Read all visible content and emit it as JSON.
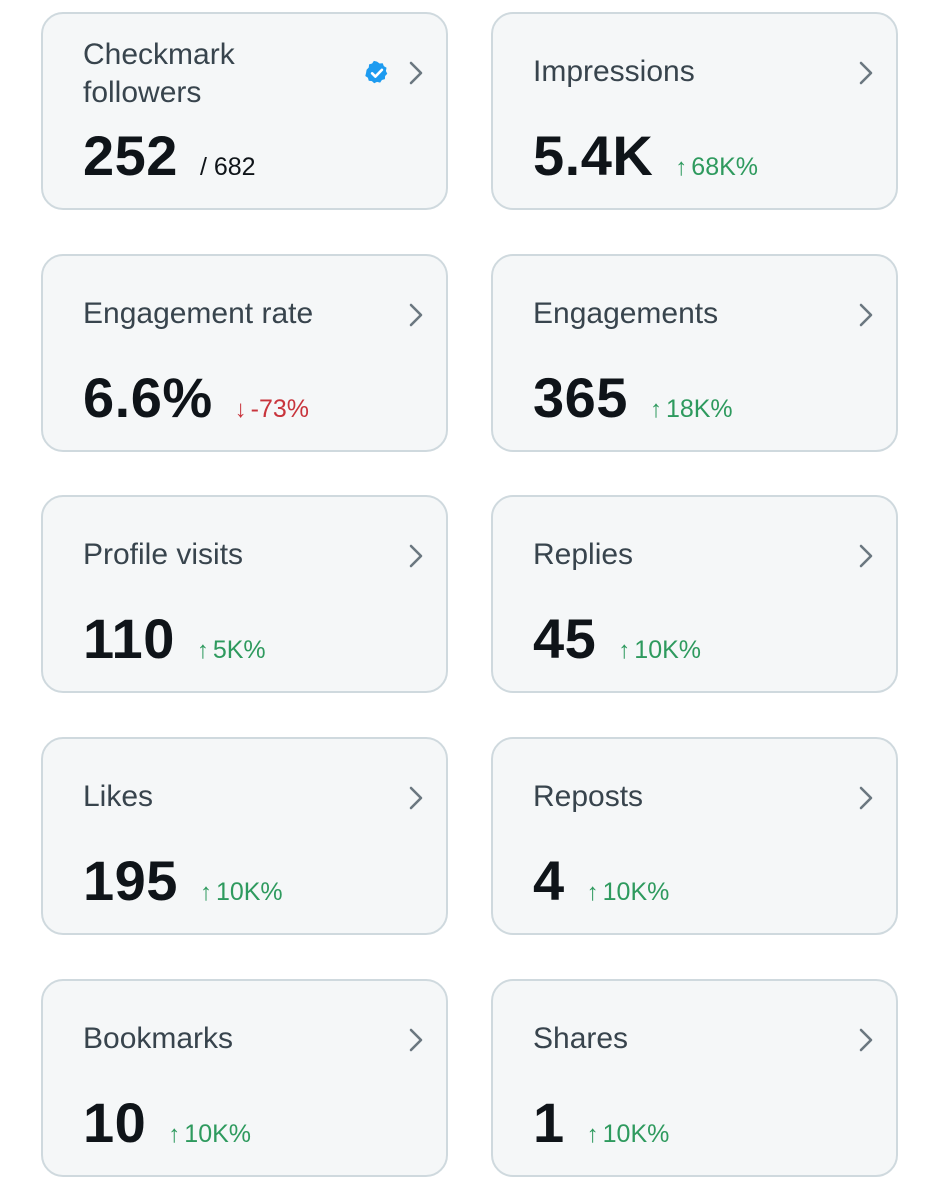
{
  "colors": {
    "card_bg": "#f5f7f8",
    "card_border": "#cfd9de",
    "up": "#2e9a5e",
    "down": "#c8343c",
    "verified": "#1d9bf0"
  },
  "cards": [
    {
      "title": "Checkmark followers",
      "value": "252",
      "sub": "/ 682",
      "icon": "verified-badge-icon"
    },
    {
      "title": "Impressions",
      "value": "5.4K",
      "delta_arrow": "↑",
      "delta": "68K%",
      "direction": "up"
    },
    {
      "title": "Engagement rate",
      "value": "6.6%",
      "delta_arrow": "↓",
      "delta": "-73%",
      "direction": "down"
    },
    {
      "title": "Engagements",
      "value": "365",
      "delta_arrow": "↑",
      "delta": "18K%",
      "direction": "up"
    },
    {
      "title": "Profile visits",
      "value": "110",
      "delta_arrow": "↑",
      "delta": "5K%",
      "direction": "up"
    },
    {
      "title": "Replies",
      "value": "45",
      "delta_arrow": "↑",
      "delta": "10K%",
      "direction": "up"
    },
    {
      "title": "Likes",
      "value": "195",
      "delta_arrow": "↑",
      "delta": "10K%",
      "direction": "up"
    },
    {
      "title": "Reposts",
      "value": "4",
      "delta_arrow": "↑",
      "delta": "10K%",
      "direction": "up"
    },
    {
      "title": "Bookmarks",
      "value": "10",
      "delta_arrow": "↑",
      "delta": "10K%",
      "direction": "up"
    },
    {
      "title": "Shares",
      "value": "1",
      "delta_arrow": "↑",
      "delta": "10K%",
      "direction": "up"
    }
  ]
}
